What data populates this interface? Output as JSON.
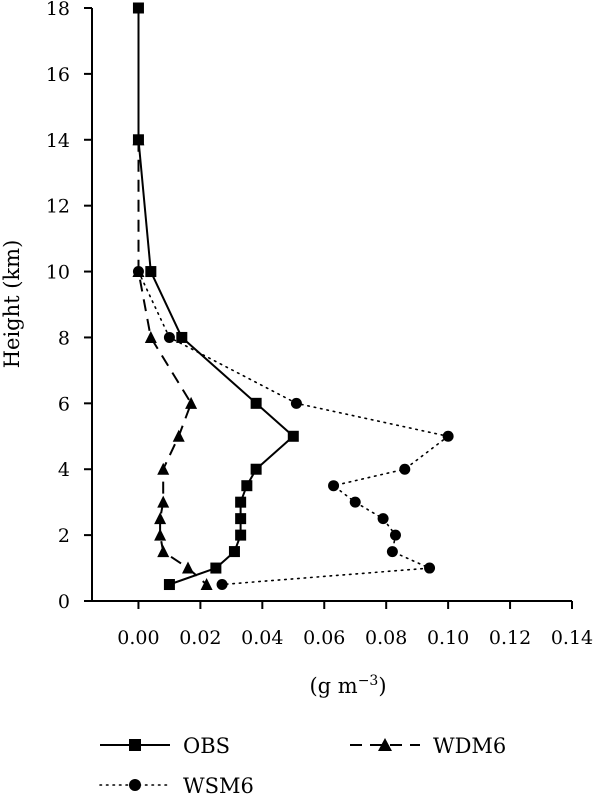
{
  "chart_data": {
    "type": "line",
    "ylabel": "Height (km)",
    "xlabel_base": "(g m",
    "xlabel_exp": "−3",
    "xlabel_close": ")",
    "xlim": [
      -0.015,
      0.14
    ],
    "ylim": [
      0,
      18
    ],
    "x_ticks": [
      0.0,
      0.02,
      0.04,
      0.06,
      0.08,
      0.1,
      0.12,
      0.14
    ],
    "x_tick_labels": [
      "0.00",
      "0.02",
      "0.04",
      "0.06",
      "0.08",
      "0.10",
      "0.12",
      "0.14"
    ],
    "y_ticks": [
      0,
      2,
      4,
      6,
      8,
      10,
      12,
      14,
      16,
      18
    ],
    "y_tick_labels": [
      "0",
      "2",
      "4",
      "6",
      "8",
      "10",
      "12",
      "14",
      "16",
      "18"
    ],
    "grid": false,
    "legend_position": "bottom",
    "series": [
      {
        "name": "OBS",
        "marker": "square",
        "line": "solid",
        "x": [
          0.0,
          0.0,
          0.004,
          0.014,
          0.038,
          0.05,
          0.038,
          0.035,
          0.033,
          0.033,
          0.033,
          0.031,
          0.025,
          0.01
        ],
        "y": [
          18,
          14,
          10,
          8,
          6,
          5,
          4,
          3.5,
          3,
          2.5,
          2,
          1.5,
          1,
          0.5
        ]
      },
      {
        "name": "WDM6",
        "marker": "triangle",
        "line": "dashed",
        "x": [
          0.0,
          0.0,
          0.004,
          0.017,
          0.013,
          0.008,
          0.008,
          0.007,
          0.007,
          0.008,
          0.016,
          0.022
        ],
        "y": [
          14,
          10,
          8,
          6,
          5,
          4,
          3,
          2.5,
          2,
          1.5,
          1,
          0.5
        ]
      },
      {
        "name": "WSM6",
        "marker": "circle",
        "line": "dotted",
        "x": [
          0.0,
          0.01,
          0.051,
          0.1,
          0.086,
          0.063,
          0.07,
          0.079,
          0.083,
          0.082,
          0.094,
          0.027
        ],
        "y": [
          10,
          8,
          6,
          5,
          4,
          3.5,
          3,
          2.5,
          2,
          1.5,
          1,
          0.5
        ]
      }
    ]
  },
  "legend": {
    "items": [
      {
        "label": "OBS"
      },
      {
        "label": "WDM6"
      },
      {
        "label": "WSM6"
      }
    ]
  },
  "colors": {
    "ink": "#000000",
    "background": "#ffffff"
  }
}
